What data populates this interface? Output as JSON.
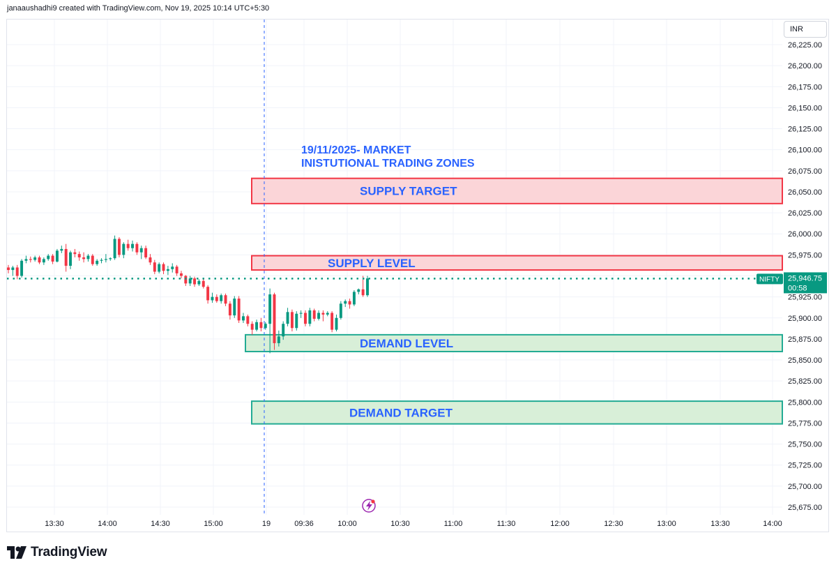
{
  "header": {
    "credit": "janaaushadhi9 created with TradingView.com, Nov 19, 2025 10:14 UTC+5:30"
  },
  "price_scale": {
    "currency": "INR",
    "ticks": [
      "26,225.00",
      "26,200.00",
      "26,175.00",
      "26,150.00",
      "26,125.00",
      "26,100.00",
      "26,075.00",
      "26,050.00",
      "26,025.00",
      "26,000.00",
      "25,975.00",
      "25,925.00",
      "25,900.00",
      "25,875.00",
      "25,850.00",
      "25,825.00",
      "25,800.00",
      "25,775.00",
      "25,750.00",
      "25,725.00",
      "25,700.00",
      "25,675.00"
    ]
  },
  "last_price": {
    "symbol": "NIFTY",
    "price": "25,946.75",
    "countdown": "00:58",
    "color": "#089981"
  },
  "time_axis": {
    "labels": [
      "13:30",
      "14:00",
      "14:30",
      "15:00",
      "19",
      "09:36",
      "10:00",
      "10:30",
      "11:00",
      "11:30",
      "12:00",
      "12:30",
      "13:00",
      "13:30",
      "14:00"
    ]
  },
  "annotation": {
    "line1": "19/11/2025- MARKET",
    "line2": "INISTUTIONAL TRADING ZONES",
    "color": "#2962ff"
  },
  "zones": [
    {
      "label": "SUPPLY TARGET",
      "top": 26066,
      "bottom": 26036,
      "kind": "supply"
    },
    {
      "label": "SUPPLY LEVEL",
      "top": 25974,
      "bottom": 25957,
      "kind": "supply"
    },
    {
      "label": "DEMAND LEVEL",
      "top": 25880,
      "bottom": 25860,
      "kind": "demand"
    },
    {
      "label": "DEMAND TARGET",
      "top": 25801,
      "bottom": 25774,
      "kind": "demand"
    }
  ],
  "colors": {
    "up": "#089981",
    "down": "#f23645",
    "supply_fill": "#fbd5d8",
    "supply_border": "#f23645",
    "demand_fill": "#d8efd8",
    "demand_border": "#22ab94",
    "zone_text": "#2962ff"
  },
  "footer": {
    "brand": "TradingView"
  },
  "chart_data": {
    "type": "candlestick",
    "title": "19/11/2025- MARKET INISTUTIONAL TRADING ZONES",
    "symbol": "NIFTY",
    "ylim": [
      25665,
      26240
    ],
    "x_session_break_label": "19",
    "candles": [
      {
        "o": 25960,
        "h": 25963,
        "l": 25953,
        "c": 25957
      },
      {
        "o": 25957,
        "h": 25962,
        "l": 25950,
        "c": 25960
      },
      {
        "o": 25960,
        "h": 25963,
        "l": 25946,
        "c": 25950
      },
      {
        "o": 25950,
        "h": 25970,
        "l": 25948,
        "c": 25968
      },
      {
        "o": 25968,
        "h": 25974,
        "l": 25965,
        "c": 25970
      },
      {
        "o": 25970,
        "h": 25973,
        "l": 25966,
        "c": 25969
      },
      {
        "o": 25969,
        "h": 25974,
        "l": 25967,
        "c": 25972
      },
      {
        "o": 25972,
        "h": 25974,
        "l": 25964,
        "c": 25966
      },
      {
        "o": 25966,
        "h": 25972,
        "l": 25963,
        "c": 25970
      },
      {
        "o": 25970,
        "h": 25976,
        "l": 25968,
        "c": 25974
      },
      {
        "o": 25974,
        "h": 25976,
        "l": 25964,
        "c": 25967
      },
      {
        "o": 25967,
        "h": 25982,
        "l": 25966,
        "c": 25980
      },
      {
        "o": 25980,
        "h": 25986,
        "l": 25977,
        "c": 25982
      },
      {
        "o": 25982,
        "h": 25988,
        "l": 25955,
        "c": 25962
      },
      {
        "o": 25962,
        "h": 25980,
        "l": 25958,
        "c": 25978
      },
      {
        "o": 25978,
        "h": 25982,
        "l": 25972,
        "c": 25976
      },
      {
        "o": 25976,
        "h": 25979,
        "l": 25968,
        "c": 25972
      },
      {
        "o": 25972,
        "h": 25978,
        "l": 25966,
        "c": 25970
      },
      {
        "o": 25970,
        "h": 25976,
        "l": 25967,
        "c": 25974
      },
      {
        "o": 25974,
        "h": 25976,
        "l": 25962,
        "c": 25964
      },
      {
        "o": 25964,
        "h": 25970,
        "l": 25962,
        "c": 25968
      },
      {
        "o": 25968,
        "h": 25971,
        "l": 25965,
        "c": 25969
      },
      {
        "o": 25969,
        "h": 25976,
        "l": 25966,
        "c": 25970
      },
      {
        "o": 25970,
        "h": 25972,
        "l": 25968,
        "c": 25971
      },
      {
        "o": 25971,
        "h": 25998,
        "l": 25969,
        "c": 25994
      },
      {
        "o": 25994,
        "h": 25996,
        "l": 25972,
        "c": 25975
      },
      {
        "o": 25975,
        "h": 25990,
        "l": 25971,
        "c": 25988
      },
      {
        "o": 25988,
        "h": 25993,
        "l": 25980,
        "c": 25983
      },
      {
        "o": 25983,
        "h": 25992,
        "l": 25979,
        "c": 25988
      },
      {
        "o": 25988,
        "h": 25990,
        "l": 25975,
        "c": 25978
      },
      {
        "o": 25978,
        "h": 25986,
        "l": 25970,
        "c": 25983
      },
      {
        "o": 25983,
        "h": 25986,
        "l": 25970,
        "c": 25972
      },
      {
        "o": 25972,
        "h": 25976,
        "l": 25963,
        "c": 25966
      },
      {
        "o": 25966,
        "h": 25969,
        "l": 25952,
        "c": 25955
      },
      {
        "o": 25955,
        "h": 25966,
        "l": 25953,
        "c": 25964
      },
      {
        "o": 25964,
        "h": 25966,
        "l": 25952,
        "c": 25956
      },
      {
        "o": 25956,
        "h": 25962,
        "l": 25951,
        "c": 25958
      },
      {
        "o": 25958,
        "h": 25965,
        "l": 25954,
        "c": 25961
      },
      {
        "o": 25961,
        "h": 25963,
        "l": 25950,
        "c": 25953
      },
      {
        "o": 25953,
        "h": 25956,
        "l": 25947,
        "c": 25950
      },
      {
        "o": 25950,
        "h": 25951,
        "l": 25938,
        "c": 25941
      },
      {
        "o": 25941,
        "h": 25950,
        "l": 25938,
        "c": 25947
      },
      {
        "o": 25947,
        "h": 25949,
        "l": 25937,
        "c": 25940
      },
      {
        "o": 25940,
        "h": 25946,
        "l": 25938,
        "c": 25944
      },
      {
        "o": 25944,
        "h": 25946,
        "l": 25935,
        "c": 25937
      },
      {
        "o": 25937,
        "h": 25939,
        "l": 25917,
        "c": 25921
      },
      {
        "o": 25921,
        "h": 25930,
        "l": 25918,
        "c": 25925
      },
      {
        "o": 25925,
        "h": 25928,
        "l": 25918,
        "c": 25920
      },
      {
        "o": 25920,
        "h": 25929,
        "l": 25917,
        "c": 25927
      },
      {
        "o": 25927,
        "h": 25929,
        "l": 25914,
        "c": 25917
      },
      {
        "o": 25917,
        "h": 25920,
        "l": 25898,
        "c": 25903
      },
      {
        "o": 25903,
        "h": 25926,
        "l": 25900,
        "c": 25923
      },
      {
        "o": 25923,
        "h": 25926,
        "l": 25894,
        "c": 25897
      },
      {
        "o": 25897,
        "h": 25906,
        "l": 25894,
        "c": 25902
      },
      {
        "o": 25902,
        "h": 25904,
        "l": 25890,
        "c": 25893
      },
      {
        "o": 25893,
        "h": 25896,
        "l": 25880,
        "c": 25886
      },
      {
        "o": 25886,
        "h": 25898,
        "l": 25884,
        "c": 25895
      },
      {
        "o": 25895,
        "h": 25900,
        "l": 25884,
        "c": 25888
      },
      {
        "o": 25888,
        "h": 25895,
        "l": 25886,
        "c": 25893
      },
      {
        "o": 25893,
        "h": 25935,
        "l": 25858,
        "c": 25928
      },
      {
        "o": 25928,
        "h": 25930,
        "l": 25862,
        "c": 25870
      },
      {
        "o": 25870,
        "h": 25885,
        "l": 25866,
        "c": 25878
      },
      {
        "o": 25878,
        "h": 25896,
        "l": 25874,
        "c": 25893
      },
      {
        "o": 25893,
        "h": 25912,
        "l": 25890,
        "c": 25907
      },
      {
        "o": 25907,
        "h": 25910,
        "l": 25884,
        "c": 25888
      },
      {
        "o": 25888,
        "h": 25908,
        "l": 25885,
        "c": 25905
      },
      {
        "o": 25905,
        "h": 25909,
        "l": 25900,
        "c": 25906
      },
      {
        "o": 25906,
        "h": 25909,
        "l": 25890,
        "c": 25893
      },
      {
        "o": 25893,
        "h": 25912,
        "l": 25890,
        "c": 25909
      },
      {
        "o": 25909,
        "h": 25911,
        "l": 25896,
        "c": 25899
      },
      {
        "o": 25899,
        "h": 25909,
        "l": 25897,
        "c": 25906
      },
      {
        "o": 25906,
        "h": 25909,
        "l": 25896,
        "c": 25904
      },
      {
        "o": 25904,
        "h": 25908,
        "l": 25902,
        "c": 25906
      },
      {
        "o": 25906,
        "h": 25908,
        "l": 25883,
        "c": 25886
      },
      {
        "o": 25886,
        "h": 25904,
        "l": 25884,
        "c": 25900
      },
      {
        "o": 25900,
        "h": 25920,
        "l": 25898,
        "c": 25917
      },
      {
        "o": 25917,
        "h": 25922,
        "l": 25913,
        "c": 25920
      },
      {
        "o": 25920,
        "h": 25923,
        "l": 25911,
        "c": 25916
      },
      {
        "o": 25916,
        "h": 25933,
        "l": 25914,
        "c": 25931
      },
      {
        "o": 25931,
        "h": 25935,
        "l": 25928,
        "c": 25934
      },
      {
        "o": 25934,
        "h": 25950,
        "l": 25925,
        "c": 25927
      },
      {
        "o": 25927,
        "h": 25950,
        "l": 25925,
        "c": 25947
      }
    ]
  }
}
